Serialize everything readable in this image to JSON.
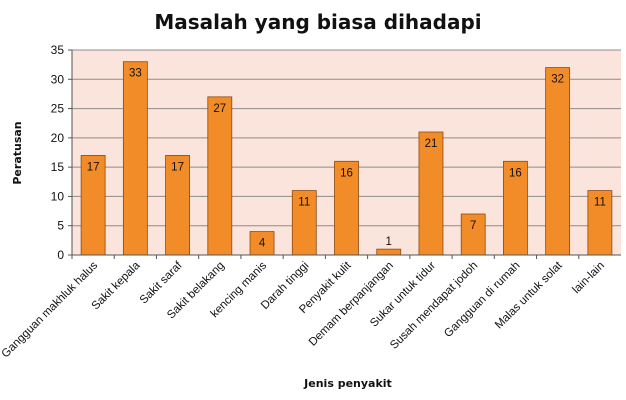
{
  "chart_data": {
    "type": "bar",
    "title": "Masalah yang biasa dihadapi",
    "xlabel": "Jenis penyakit",
    "ylabel": "Peratusan",
    "categories": [
      "Gangguan makhluk halus",
      "Sakit kepala",
      "Sakit saraf",
      "Sakit belakang",
      "kencing manis",
      "Darah tinggi",
      "Penyakit kulit",
      "Demam berpanjangan",
      "Sukar untuk tidur",
      "Susah mendapat jodoh",
      "Gangguan di rumah",
      "Malas untuk solat",
      "lain-lain"
    ],
    "values": [
      17,
      33,
      17,
      27,
      4,
      11,
      16,
      1,
      21,
      7,
      16,
      32,
      11
    ],
    "ylim": [
      0,
      35
    ],
    "yticks": [
      0,
      5,
      10,
      15,
      20,
      25,
      30,
      35
    ],
    "grid": true,
    "legend": "none",
    "data_labels": true,
    "colors": {
      "bar_fill": "#f28c28",
      "bar_stroke": "#8a4a12",
      "plot_bg": "#fbe4dc",
      "grid": "#8c8c8c"
    }
  }
}
